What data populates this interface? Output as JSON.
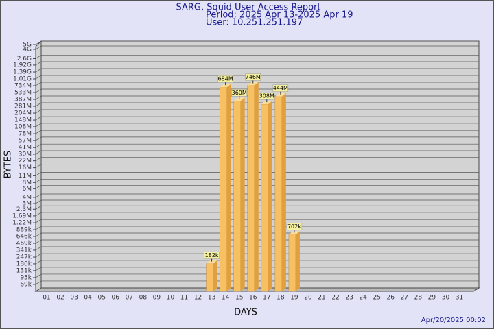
{
  "chart_data": {
    "type": "bar",
    "title": "SARG, Squid User Access Report",
    "subtitle": [
      "Period: 2025 Apr 13-2025 Apr 19",
      "User: 10.251.251.197"
    ],
    "x_label": "DAYS",
    "y_label": "BYTES",
    "footer": "Apr/20/2025 00:02",
    "categories": [
      "01",
      "02",
      "03",
      "04",
      "05",
      "06",
      "07",
      "08",
      "09",
      "10",
      "11",
      "12",
      "13",
      "14",
      "15",
      "16",
      "17",
      "18",
      "19",
      "20",
      "21",
      "22",
      "23",
      "24",
      "25",
      "26",
      "27",
      "28",
      "29",
      "30",
      "31"
    ],
    "values": [
      null,
      null,
      null,
      null,
      null,
      null,
      null,
      null,
      null,
      null,
      null,
      null,
      182000,
      684000000,
      360000000,
      746000000,
      308000000,
      444000000,
      702000,
      null,
      null,
      null,
      null,
      null,
      null,
      null,
      null,
      null,
      null,
      null,
      null
    ],
    "value_labels": [
      null,
      null,
      null,
      null,
      null,
      null,
      null,
      null,
      null,
      null,
      null,
      null,
      "182k",
      "684M",
      "360M",
      "746M",
      "308M",
      "444M",
      "702k",
      null,
      null,
      null,
      null,
      null,
      null,
      null,
      null,
      null,
      null,
      null,
      null
    ],
    "color": "#f7c163",
    "log_scale": true,
    "grid": true,
    "ylim": [
      50000,
      5000000000
    ],
    "yticks": [
      {
        "value": 69000,
        "label": "69k"
      },
      {
        "value": 95000,
        "label": "95k"
      },
      {
        "value": 131000,
        "label": "131k"
      },
      {
        "value": 180000,
        "label": "180k"
      },
      {
        "value": 247000,
        "label": "247k"
      },
      {
        "value": 341000,
        "label": "341k"
      },
      {
        "value": 469000,
        "label": "469k"
      },
      {
        "value": 646000,
        "label": "646k"
      },
      {
        "value": 889000,
        "label": "889k"
      },
      {
        "value": 1220000,
        "label": "1.22M"
      },
      {
        "value": 1690000,
        "label": "1.69M"
      },
      {
        "value": 2300000,
        "label": "2.3M"
      },
      {
        "value": 3000000,
        "label": "3M"
      },
      {
        "value": 4000000,
        "label": "4M"
      },
      {
        "value": 6000000,
        "label": "6M"
      },
      {
        "value": 8000000,
        "label": "8M"
      },
      {
        "value": 11000000,
        "label": "11M"
      },
      {
        "value": 16000000,
        "label": "16M"
      },
      {
        "value": 22000000,
        "label": "22M"
      },
      {
        "value": 30000000,
        "label": "30M"
      },
      {
        "value": 41000000,
        "label": "41M"
      },
      {
        "value": 57000000,
        "label": "57M"
      },
      {
        "value": 78000000,
        "label": "78M"
      },
      {
        "value": 108000000,
        "label": "108M"
      },
      {
        "value": 148000000,
        "label": "148M"
      },
      {
        "value": 204000000,
        "label": "204M"
      },
      {
        "value": 281000000,
        "label": "281M"
      },
      {
        "value": 387000000,
        "label": "387M"
      },
      {
        "value": 533000000,
        "label": "533M"
      },
      {
        "value": 734000000,
        "label": "734M"
      },
      {
        "value": 1010000000,
        "label": "1.01G"
      },
      {
        "value": 1390000000,
        "label": "1.39G"
      },
      {
        "value": 1920000000,
        "label": "1.92G"
      },
      {
        "value": 2600000000,
        "label": "2.6G"
      },
      {
        "value": 4000000000,
        "label": "4G"
      },
      {
        "value": 5000000000,
        "label": "5G"
      }
    ]
  }
}
